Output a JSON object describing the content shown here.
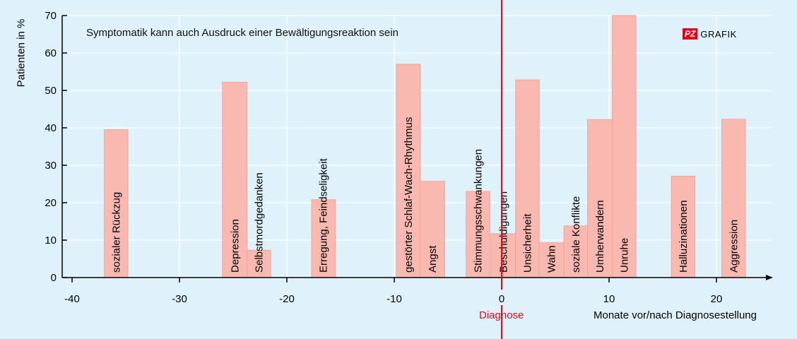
{
  "chart_data": {
    "type": "bar",
    "subtitle": "Symptomatik kann auch Ausdruck einer Bewältigungsreaktion sein",
    "ylabel": "Patienten in %",
    "xlabel": "Monate vor/nach Diagnosestellung",
    "marker_label": "Diagnose",
    "marker_x": 0,
    "xlim": [
      -40,
      25
    ],
    "ylim": [
      0,
      70
    ],
    "xticks": [
      -40,
      -30,
      -20,
      -10,
      0,
      10,
      20
    ],
    "xtick_labels": [
      "-40",
      "-30",
      "-20",
      "-10",
      "0",
      "10",
      "20"
    ],
    "yticks": [
      0,
      10,
      20,
      30,
      40,
      50,
      60,
      70
    ],
    "ytick_labels": [
      "0",
      "10",
      "20",
      "30",
      "40",
      "50",
      "60",
      "70"
    ],
    "bars": [
      {
        "label": "sozialer Rückzug",
        "x0": -37,
        "x1": -34.8,
        "value": 39.5
      },
      {
        "label": "Depression",
        "x0": -26,
        "x1": -23.7,
        "value": 52.2
      },
      {
        "label": "Selbstmordgedanken",
        "x0": -23.7,
        "x1": -21.5,
        "value": 7.3
      },
      {
        "label": "Erregung, Feindseligkeit",
        "x0": -17.7,
        "x1": -15.5,
        "value": 20.8
      },
      {
        "label": "gestörter Schlaf-Wach-Rhythmus",
        "x0": -9.8,
        "x1": -7.6,
        "value": 57
      },
      {
        "label": "Angst",
        "x0": -7.6,
        "x1": -5.3,
        "value": 25.7
      },
      {
        "label": "Stimmungsschwankungen",
        "x0": -3.3,
        "x1": -1.1,
        "value": 23
      },
      {
        "label": "Beschuldigungen",
        "x0": -1,
        "x1": 1.3,
        "value": 11.7
      },
      {
        "label": "Unsicherheit",
        "x0": 1.3,
        "x1": 3.5,
        "value": 52.8
      },
      {
        "label": "Wahn",
        "x0": 3.5,
        "x1": 5.8,
        "value": 9.3
      },
      {
        "label": "soziale Konflikte",
        "x0": 5.8,
        "x1": 8,
        "value": 13.8
      },
      {
        "label": "Umherwandern",
        "x0": 8,
        "x1": 10.3,
        "value": 42.2
      },
      {
        "label": "Unruhe",
        "x0": 10.3,
        "x1": 12.5,
        "value": 70
      },
      {
        "label": "Halluzinationen",
        "x0": 15.8,
        "x1": 18,
        "value": 27.1
      },
      {
        "label": "Aggression",
        "x0": 20.5,
        "x1": 22.7,
        "value": 42.3
      }
    ],
    "grid": true,
    "colors": {
      "background": "#dff1fb",
      "bar": "#f9b8b0",
      "bar_edge": "#f3a49a",
      "grid": "#ffffff",
      "marker": "#d6101f",
      "axis": "#000000"
    }
  },
  "logo": {
    "box_text": "PZ",
    "text": "GRAFIK"
  }
}
